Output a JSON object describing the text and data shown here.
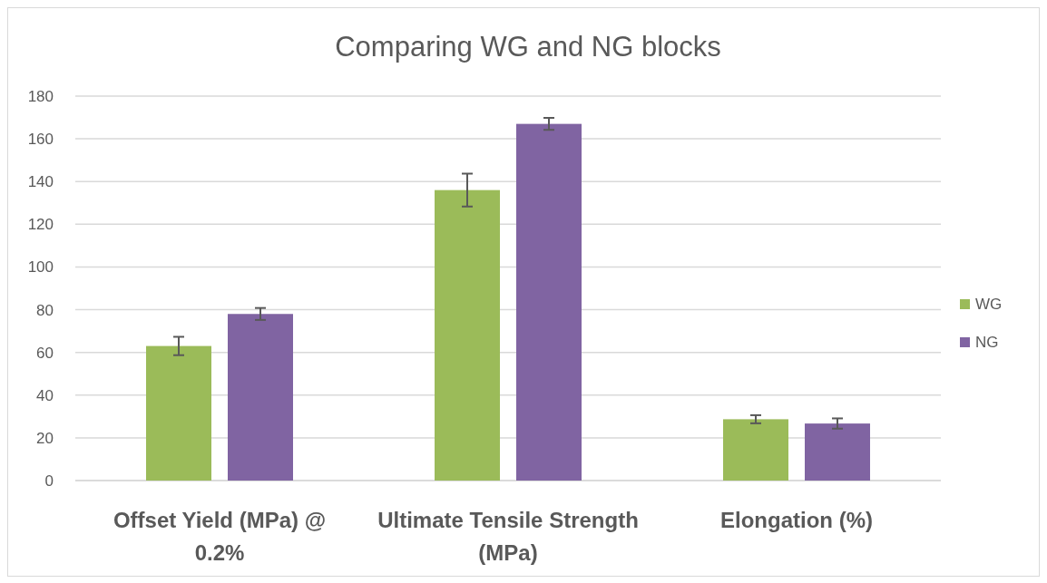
{
  "chart_data": {
    "type": "bar",
    "title": "Comparing WG and NG blocks",
    "categories": [
      "Offset Yield (MPa) @ 0.2%",
      "Ultimate Tensile Strength (MPa)",
      "Elongation (%)"
    ],
    "series": [
      {
        "name": "WG",
        "color": "#9bbb59",
        "values": [
          63,
          136,
          28.7
        ],
        "errors": [
          4.3,
          7.7,
          1.9
        ]
      },
      {
        "name": "NG",
        "color": "#8064a2",
        "values": [
          78,
          167,
          26.7
        ],
        "errors": [
          2.8,
          2.8,
          2.4
        ]
      }
    ],
    "ylim": [
      0,
      180
    ],
    "yticks": [
      0,
      20,
      40,
      60,
      80,
      100,
      120,
      140,
      160,
      180
    ],
    "grid": "y",
    "legend": "right"
  }
}
